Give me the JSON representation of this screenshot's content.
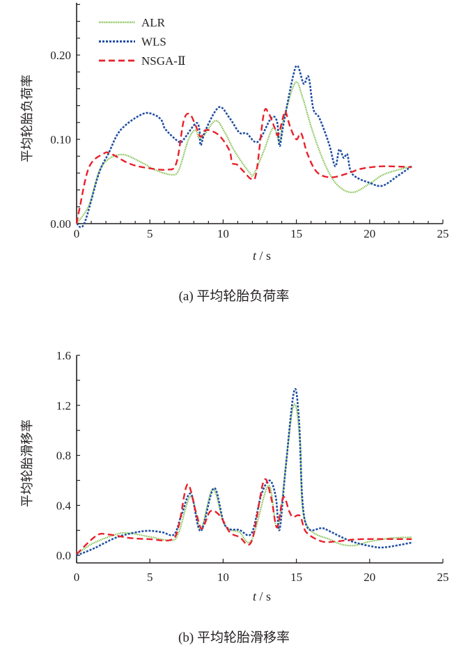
{
  "chart_data": [
    {
      "type": "line",
      "caption": "(a)  平均轮胎负荷率",
      "xlabel_italic": "t",
      "xlabel_unit": " / s",
      "ylabel": "平均轮胎负荷率",
      "xlim": [
        0,
        25
      ],
      "ylim": [
        0,
        0.262
      ],
      "xticks": [
        0,
        5,
        10,
        15,
        20,
        25
      ],
      "xtick_labels": [
        "0",
        "5",
        "10",
        "15",
        "20",
        "25"
      ],
      "yticks": [
        0,
        0.1,
        0.2
      ],
      "ytick_labels": [
        "0.00",
        "0.10",
        "0.20"
      ],
      "y_minor_step": 0.02,
      "x_minor_step": 1,
      "legend_position": "top-left",
      "series": [
        {
          "name": "ALR",
          "color": "#6ab42d",
          "style": "dotted",
          "x": [
            0,
            0.85,
            1.68,
            3.0,
            4.49,
            5.32,
            6.48,
            6.98,
            7.64,
            8.13,
            8.47,
            9.46,
            10.12,
            10.78,
            11.78,
            12.1,
            12.77,
            13.43,
            13.85,
            14.1,
            14.92,
            15.42,
            16.08,
            16.91,
            17.74,
            18.81,
            20.05,
            21.05,
            22.87
          ],
          "y": [
            0,
            0.022,
            0.067,
            0.082,
            0.072,
            0.064,
            0.058,
            0.064,
            0.1,
            0.111,
            0.1,
            0.122,
            0.108,
            0.086,
            0.061,
            0.059,
            0.086,
            0.114,
            0.097,
            0.122,
            0.167,
            0.15,
            0.111,
            0.072,
            0.047,
            0.037,
            0.048,
            0.059,
            0.068
          ]
        },
        {
          "name": "WLS",
          "color": "#1f4ea3",
          "style": "dashdot",
          "x": [
            0,
            0.52,
            1.51,
            2.17,
            3.0,
            4.49,
            5.32,
            5.82,
            6.06,
            6.98,
            7.31,
            8.13,
            8.38,
            8.47,
            8.8,
            9.71,
            10.45,
            11.11,
            11.61,
            12.36,
            13.27,
            13.68,
            13.85,
            14.1,
            14.76,
            15.09,
            15.5,
            15.83,
            16.16,
            16.58,
            17.24,
            17.65,
            17.93,
            18.23,
            18.48,
            18.81,
            20.05,
            20.88,
            21.87,
            22.87
          ],
          "y": [
            0,
            0,
            0.059,
            0.083,
            0.111,
            0.13,
            0.129,
            0.122,
            0.112,
            0.097,
            0.1,
            0.119,
            0.112,
            0.093,
            0.111,
            0.138,
            0.125,
            0.108,
            0.107,
            0.097,
            0.125,
            0.121,
            0.092,
            0.116,
            0.174,
            0.187,
            0.166,
            0.174,
            0.136,
            0.125,
            0.094,
            0.068,
            0.088,
            0.078,
            0.082,
            0.059,
            0.048,
            0.045,
            0.056,
            0.068
          ]
        },
        {
          "name": "NSGA-Ⅱ",
          "color": "#e8202a",
          "style": "dashed",
          "x": [
            0,
            0.19,
            0.85,
            1.84,
            2.34,
            3.5,
            4.49,
            6.15,
            6.81,
            7.31,
            7.72,
            8.13,
            8.47,
            8.8,
            9.46,
            9.96,
            10.45,
            10.62,
            10.95,
            11.45,
            11.94,
            12.27,
            12.77,
            13.1,
            13.51,
            13.76,
            14.1,
            14.26,
            14.59,
            15.0,
            15.33,
            15.75,
            16.41,
            17.41,
            18.73,
            19.39,
            20.88,
            22.87
          ],
          "y": [
            0,
            0.017,
            0.067,
            0.083,
            0.083,
            0.072,
            0.067,
            0.064,
            0.072,
            0.122,
            0.13,
            0.116,
            0.103,
            0.111,
            0.108,
            0.1,
            0.086,
            0.072,
            0.07,
            0.061,
            0.053,
            0.061,
            0.13,
            0.131,
            0.114,
            0.105,
            0.127,
            0.133,
            0.114,
            0.1,
            0.107,
            0.083,
            0.061,
            0.055,
            0.061,
            0.065,
            0.068,
            0.067
          ]
        }
      ]
    },
    {
      "type": "line",
      "caption": "(b)  平均轮胎滑移率",
      "xlabel_italic": "t",
      "xlabel_unit": " / s",
      "ylabel": "平均轮胎滑移率",
      "xlim": [
        0,
        25
      ],
      "ylim": [
        -0.06,
        1.6
      ],
      "xticks": [
        0,
        5,
        10,
        15,
        20,
        25
      ],
      "xtick_labels": [
        "0",
        "5",
        "10",
        "15",
        "20",
        "25"
      ],
      "yticks": [
        0,
        0.4,
        0.8,
        1.2,
        1.6
      ],
      "ytick_labels": [
        "0.0",
        "0.4",
        "0.8",
        "1.2",
        "1.6"
      ],
      "y_minor_step": 0.2,
      "x_minor_step": 5,
      "series": [
        {
          "name": "ALR",
          "color": "#6ab42d",
          "style": "dotted",
          "x": [
            0,
            1.18,
            2.84,
            3.66,
            4.99,
            6.48,
            6.98,
            7.8,
            8.47,
            9.3,
            10.12,
            11.1,
            11.94,
            13.1,
            13.76,
            14.76,
            15.25,
            15.58,
            17.41,
            18.73,
            20.05,
            21.55,
            22.87
          ],
          "y": [
            0.01,
            0.1,
            0.173,
            0.177,
            0.149,
            0.121,
            0.186,
            0.474,
            0.214,
            0.53,
            0.242,
            0.186,
            0.121,
            0.558,
            0.242,
            1.18,
            0.91,
            0.279,
            0.121,
            0.078,
            0.112,
            0.139,
            0.145
          ]
        },
        {
          "name": "WLS",
          "color": "#1f4ea3",
          "style": "dashdot",
          "x": [
            0,
            1.18,
            2.84,
            4.65,
            5.8,
            6.65,
            7.14,
            7.8,
            8.47,
            9.38,
            10.12,
            11.1,
            11.94,
            12.6,
            13.18,
            13.6,
            13.85,
            14.26,
            14.84,
            15.17,
            15.58,
            16.91,
            18.57,
            20.05,
            21.05,
            22.87
          ],
          "y": [
            0,
            0.056,
            0.149,
            0.195,
            0.186,
            0.167,
            0.316,
            0.493,
            0.195,
            0.539,
            0.242,
            0.204,
            0.177,
            0.483,
            0.599,
            0.465,
            0.204,
            0.688,
            1.31,
            1.1,
            0.279,
            0.214,
            0.121,
            0.074,
            0.065,
            0.102
          ]
        },
        {
          "name": "NSGA-Ⅱ",
          "color": "#e8202a",
          "style": "dashed",
          "x": [
            0,
            1.35,
            2.17,
            3.66,
            4.99,
            6.48,
            6.98,
            7.56,
            8.13,
            8.55,
            9.13,
            9.79,
            10.45,
            11.1,
            11.94,
            12.77,
            13.27,
            13.68,
            14.1,
            14.51,
            14.76,
            15.25,
            15.67,
            16.74,
            17.74,
            19.39,
            22.87
          ],
          "y": [
            0.01,
            0.158,
            0.167,
            0.139,
            0.13,
            0.126,
            0.242,
            0.567,
            0.353,
            0.214,
            0.353,
            0.316,
            0.186,
            0.149,
            0.112,
            0.595,
            0.465,
            0.223,
            0.465,
            0.353,
            0.307,
            0.316,
            0.186,
            0.112,
            0.112,
            0.13,
            0.13
          ]
        }
      ]
    }
  ]
}
